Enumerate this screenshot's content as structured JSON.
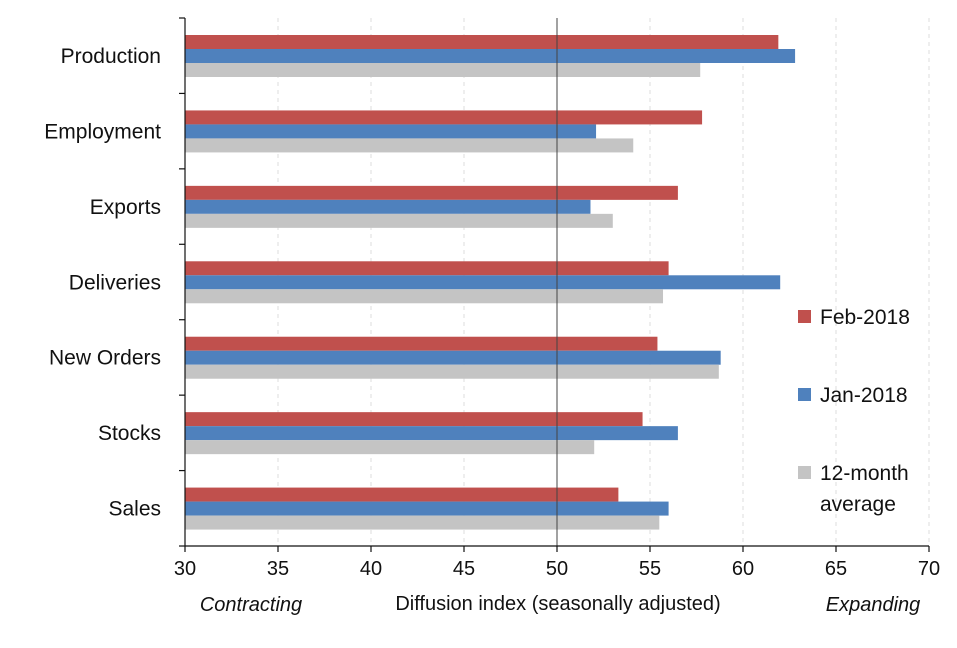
{
  "chart_data": {
    "type": "bar",
    "orientation": "horizontal",
    "categories": [
      "Production",
      "Employment",
      "Exports",
      "Deliveries",
      "New Orders",
      "Stocks",
      "Sales"
    ],
    "series": [
      {
        "name": "Feb-2018",
        "color": "#C0504D",
        "values": [
          61.9,
          57.8,
          56.5,
          56.0,
          55.4,
          54.6,
          53.3
        ]
      },
      {
        "name": "Jan-2018",
        "color": "#4F81BD",
        "values": [
          62.8,
          52.1,
          51.8,
          62.0,
          58.8,
          56.5,
          56.0
        ]
      },
      {
        "name": "12-month average",
        "color": "#C4C4C4",
        "values": [
          57.7,
          54.1,
          53.0,
          55.7,
          58.7,
          52.0,
          55.5
        ]
      }
    ],
    "xlim": [
      30,
      70
    ],
    "x_ticks": [
      30,
      35,
      40,
      45,
      50,
      55,
      60,
      65,
      70
    ],
    "x_tick_labels": [
      "30",
      "35",
      "40",
      "45",
      "50",
      "55",
      "60",
      "65",
      "70"
    ],
    "reference_line": 50,
    "xlabel": "Diffusion index (seasonally adjusted)",
    "left_annotation": "Contracting",
    "left_annotation_color": "#FF0000",
    "right_annotation": "Expanding",
    "legend": {
      "position": "right",
      "entries": [
        {
          "lines": [
            "Feb-2018"
          ],
          "color": "#C0504D"
        },
        {
          "lines": [
            "Jan-2018"
          ],
          "color": "#4F81BD"
        },
        {
          "lines": [
            "12-month",
            "average"
          ],
          "color": "#C4C4C4"
        }
      ]
    },
    "grid": true
  }
}
